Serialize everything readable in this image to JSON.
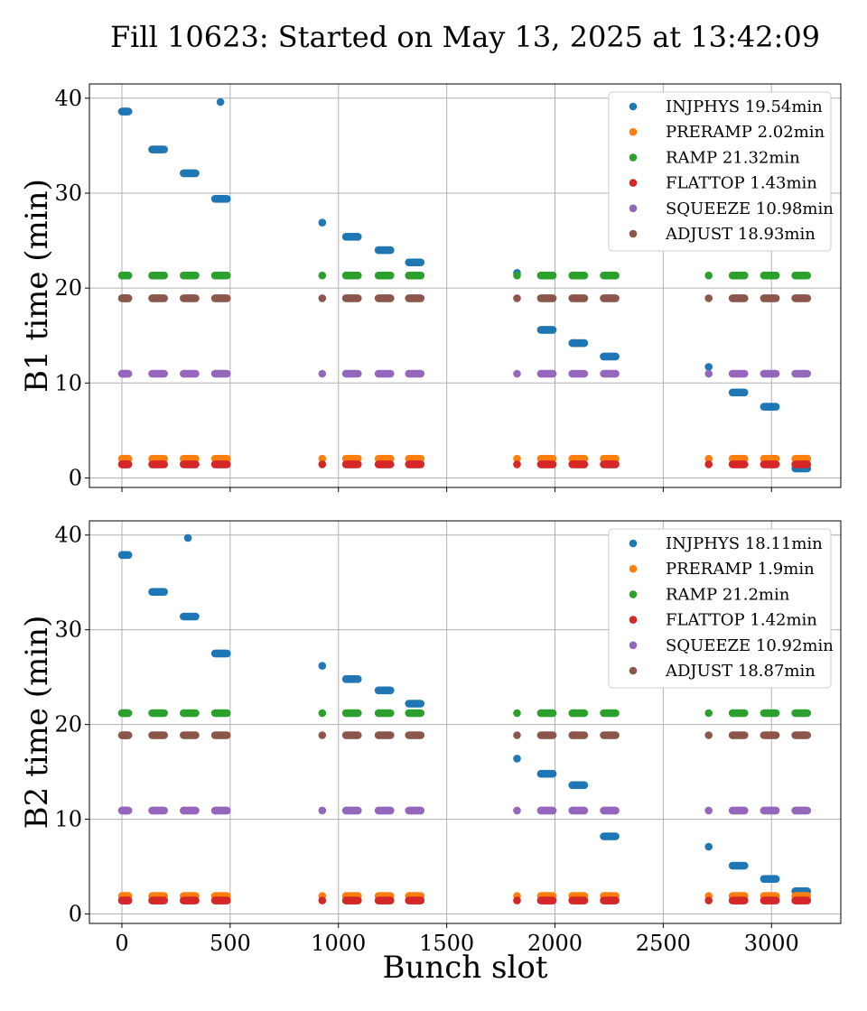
{
  "chart_data": {
    "type": "scatter",
    "title": "Fill 10623: Started on May 13, 2025 at 13:42:09",
    "xlabel": "Bunch slot",
    "xlim": [
      -150,
      3320
    ],
    "x_ticks": [
      0,
      500,
      1000,
      1500,
      2000,
      2500,
      3000
    ],
    "colors": {
      "INJPHYS": "#1f77b4",
      "PRERAMP": "#ff7f0e",
      "RAMP": "#2ca02c",
      "FLATTOP": "#d62728",
      "SQUEEZE": "#9467bd",
      "ADJUST": "#8c564b"
    },
    "grid": true,
    "legend_position": "upper right",
    "panels": [
      {
        "ylabel": "B1 time (min)",
        "ylim": [
          -1,
          41.5
        ],
        "y_ticks": [
          0,
          10,
          20,
          30,
          40
        ],
        "legend": [
          "INJPHYS 19.54min",
          "PRERAMP 2.02min",
          "RAMP 21.32min",
          "FLATTOP 1.43min",
          "SQUEEZE 10.98min",
          "ADJUST 18.93min"
        ],
        "series": [
          {
            "key": "INJPHYS",
            "groups": [
              {
                "x": [
                  0,
                  30
                ],
                "y": 38.6
              },
              {
                "x": [
                  455,
                  455
                ],
                "y": 39.6
              },
              {
                "x": [
                  140,
                  195
                ],
                "y": 34.6
              },
              {
                "x": [
                  285,
                  340
                ],
                "y": 32.1
              },
              {
                "x": [
                  430,
                  485
                ],
                "y": 29.4
              },
              {
                "x": [
                  925,
                  925
                ],
                "y": 26.9
              },
              {
                "x": [
                  1035,
                  1090
                ],
                "y": 25.4
              },
              {
                "x": [
                  1185,
                  1240
                ],
                "y": 24.0
              },
              {
                "x": [
                  1325,
                  1380
                ],
                "y": 22.7
              },
              {
                "x": [
                  1825,
                  1825
                ],
                "y": 21.6
              },
              {
                "x": [
                  1935,
                  1990
                ],
                "y": 15.6
              },
              {
                "x": [
                  2080,
                  2135
                ],
                "y": 14.2
              },
              {
                "x": [
                  2225,
                  2280
                ],
                "y": 12.8
              },
              {
                "x": [
                  2710,
                  2710
                ],
                "y": 11.7
              },
              {
                "x": [
                  2820,
                  2875
                ],
                "y": 9.0
              },
              {
                "x": [
                  2965,
                  3020
                ],
                "y": 7.5
              },
              {
                "x": [
                  3110,
                  3165
                ],
                "y": 1.0
              }
            ]
          },
          {
            "key": "RAMP",
            "y": 21.32
          },
          {
            "key": "ADJUST",
            "y": 18.93
          },
          {
            "key": "SQUEEZE",
            "y": 10.98
          },
          {
            "key": "PRERAMP",
            "y": 2.02
          },
          {
            "key": "FLATTOP",
            "y": 1.43
          }
        ]
      },
      {
        "ylabel": "B2 time (min)",
        "ylim": [
          -1,
          41.5
        ],
        "y_ticks": [
          0,
          10,
          20,
          30,
          40
        ],
        "legend": [
          "INJPHYS 18.11min",
          "PRERAMP 1.9min",
          "RAMP 21.2min",
          "FLATTOP 1.42min",
          "SQUEEZE 10.92min",
          "ADJUST 18.87min"
        ],
        "series": [
          {
            "key": "INJPHYS",
            "groups": [
              {
                "x": [
                  0,
                  30
                ],
                "y": 37.9
              },
              {
                "x": [
                  305,
                  305
                ],
                "y": 39.7
              },
              {
                "x": [
                  140,
                  195
                ],
                "y": 34.0
              },
              {
                "x": [
                  285,
                  340
                ],
                "y": 31.4
              },
              {
                "x": [
                  430,
                  485
                ],
                "y": 27.5
              },
              {
                "x": [
                  925,
                  925
                ],
                "y": 26.2
              },
              {
                "x": [
                  1035,
                  1090
                ],
                "y": 24.8
              },
              {
                "x": [
                  1185,
                  1240
                ],
                "y": 23.6
              },
              {
                "x": [
                  1325,
                  1380
                ],
                "y": 22.2
              },
              {
                "x": [
                  1825,
                  1825
                ],
                "y": 16.4
              },
              {
                "x": [
                  1935,
                  1990
                ],
                "y": 14.8
              },
              {
                "x": [
                  2080,
                  2135
                ],
                "y": 13.6
              },
              {
                "x": [
                  2225,
                  2280
                ],
                "y": 8.2
              },
              {
                "x": [
                  2710,
                  2710
                ],
                "y": 7.1
              },
              {
                "x": [
                  2820,
                  2875
                ],
                "y": 5.1
              },
              {
                "x": [
                  2965,
                  3020
                ],
                "y": 3.7
              },
              {
                "x": [
                  3110,
                  3165
                ],
                "y": 2.4
              }
            ]
          },
          {
            "key": "RAMP",
            "y": 21.2
          },
          {
            "key": "ADJUST",
            "y": 18.87
          },
          {
            "key": "SQUEEZE",
            "y": 10.92
          },
          {
            "key": "PRERAMP",
            "y": 1.9
          },
          {
            "key": "FLATTOP",
            "y": 1.42
          }
        ]
      }
    ],
    "train_groups": [
      [
        0,
        30
      ],
      [
        140,
        195
      ],
      [
        285,
        340
      ],
      [
        430,
        485
      ],
      [
        925,
        925
      ],
      [
        1035,
        1090
      ],
      [
        1185,
        1240
      ],
      [
        1325,
        1380
      ],
      [
        1825,
        1825
      ],
      [
        1935,
        1990
      ],
      [
        2080,
        2135
      ],
      [
        2225,
        2280
      ],
      [
        2710,
        2710
      ],
      [
        2820,
        2875
      ],
      [
        2965,
        3020
      ],
      [
        3110,
        3165
      ]
    ]
  }
}
